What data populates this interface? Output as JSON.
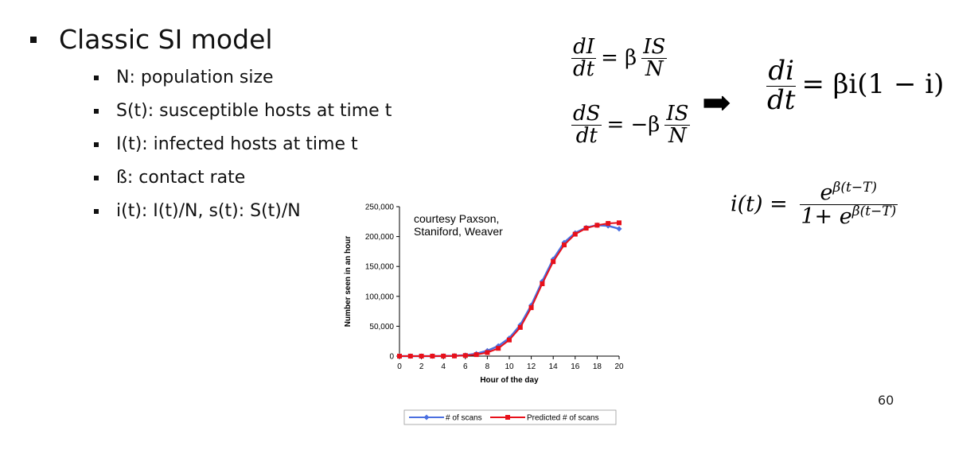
{
  "slide": {
    "title": "Classic SI model",
    "bullets": [
      "N: population size",
      "S(t): susceptible hosts at time t",
      "I(t): infected hosts at time t",
      "ß: contact rate",
      "i(t): I(t)/N, s(t): S(t)/N"
    ],
    "page_number": "60"
  },
  "equations": {
    "dI_num": "dI",
    "dI_den": "dt",
    "dI_rhs_pre": "= β",
    "dI_frac_num": "IS",
    "dI_frac_den": "N",
    "dS_num": "dS",
    "dS_den": "dt",
    "dS_rhs_pre": "= −β",
    "dS_frac_num": "IS",
    "dS_frac_den": "N",
    "arrow": "➡",
    "di_num": "di",
    "di_den": "dt",
    "di_rhs": "= βi(1 − i)",
    "it_lhs": "i(t) =",
    "it_num": "e",
    "it_num_exp": "β(t−T)",
    "it_den_pre": "1+ e",
    "it_den_exp": "β(t−T)"
  },
  "chart_data": {
    "type": "line",
    "annotation": "courtesy Paxson,\nStaniford, Weaver",
    "xlabel": "Hour of the day",
    "ylabel": "Number seen in an hour",
    "xlim": [
      0,
      20
    ],
    "ylim": [
      0,
      250000
    ],
    "xticks": [
      0,
      2,
      4,
      6,
      8,
      10,
      12,
      14,
      16,
      18,
      20
    ],
    "yticks": [
      0,
      50000,
      100000,
      150000,
      200000,
      250000
    ],
    "ytick_labels": [
      "0",
      "50,000",
      "100,000",
      "150,000",
      "200,000",
      "250,000"
    ],
    "legend_position": "bottom",
    "x": [
      0,
      1,
      2,
      3,
      4,
      5,
      6,
      7,
      8,
      9,
      10,
      11,
      12,
      13,
      14,
      15,
      16,
      17,
      18,
      19,
      20
    ],
    "series": [
      {
        "name": "# of scans",
        "color": "#4a6fe0",
        "marker": "diamond",
        "values": [
          0,
          0,
          0,
          0,
          200,
          500,
          1500,
          4000,
          9000,
          17000,
          30000,
          52000,
          85000,
          125000,
          162000,
          190000,
          206000,
          215000,
          219000,
          218000,
          213000
        ]
      },
      {
        "name": "Predicted # of scans",
        "color": "#e8101a",
        "marker": "square",
        "values": [
          0,
          0,
          0,
          0,
          100,
          300,
          1000,
          2500,
          6000,
          13000,
          27000,
          48000,
          81000,
          121000,
          158000,
          186000,
          204000,
          214000,
          219000,
          222000,
          223000
        ]
      }
    ]
  }
}
